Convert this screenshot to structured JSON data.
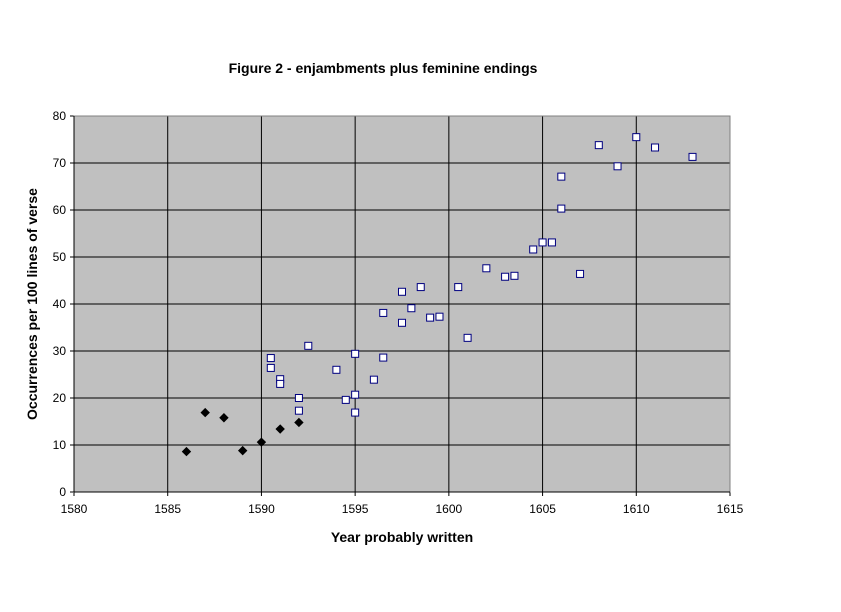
{
  "chart_data": {
    "type": "scatter",
    "title": "Figure 2 - enjambments plus feminine endings",
    "xlabel": "Year probably written",
    "ylabel": "Occurrences per 100 lines of verse",
    "xlim": [
      1580,
      1615
    ],
    "ylim": [
      0,
      80
    ],
    "x_ticks": [
      1580,
      1585,
      1590,
      1595,
      1600,
      1605,
      1610,
      1615
    ],
    "y_ticks": [
      0,
      10,
      20,
      30,
      40,
      50,
      60,
      70,
      80
    ],
    "grid": true,
    "plot_background": "#c0c0c0",
    "gridline_color": "#000000",
    "series": [
      {
        "marker": "filled-diamond",
        "color": "#000000",
        "points": [
          [
            1586,
            8.6
          ],
          [
            1587,
            16.9
          ],
          [
            1588,
            15.8
          ],
          [
            1589,
            8.8
          ],
          [
            1590,
            10.6
          ],
          [
            1591,
            13.4
          ],
          [
            1592,
            14.8
          ]
        ]
      },
      {
        "marker": "hollow-square",
        "color": "#ffffff",
        "edge_color": "#000080",
        "points": [
          [
            1590.5,
            28.5
          ],
          [
            1590.5,
            26.4
          ],
          [
            1591,
            24.0
          ],
          [
            1591,
            23.0
          ],
          [
            1592,
            20.0
          ],
          [
            1592,
            17.3
          ],
          [
            1592.5,
            31.1
          ],
          [
            1594,
            26.0
          ],
          [
            1594.5,
            19.6
          ],
          [
            1595,
            29.4
          ],
          [
            1595,
            20.7
          ],
          [
            1595,
            16.9
          ],
          [
            1596,
            23.9
          ],
          [
            1596.5,
            38.1
          ],
          [
            1596.5,
            28.6
          ],
          [
            1597.5,
            42.6
          ],
          [
            1597.5,
            36.0
          ],
          [
            1598,
            39.1
          ],
          [
            1598.5,
            43.6
          ],
          [
            1599,
            37.1
          ],
          [
            1599.5,
            37.3
          ],
          [
            1600.5,
            43.6
          ],
          [
            1601,
            32.8
          ],
          [
            1602,
            47.6
          ],
          [
            1603,
            45.8
          ],
          [
            1603.5,
            46.0
          ],
          [
            1604.5,
            51.6
          ],
          [
            1605,
            53.1
          ],
          [
            1605.5,
            53.1
          ],
          [
            1606,
            67.1
          ],
          [
            1606,
            60.3
          ],
          [
            1607,
            46.4
          ],
          [
            1608,
            73.8
          ],
          [
            1609,
            69.3
          ],
          [
            1610,
            75.5
          ],
          [
            1611,
            73.3
          ],
          [
            1613,
            71.3
          ]
        ]
      }
    ]
  }
}
